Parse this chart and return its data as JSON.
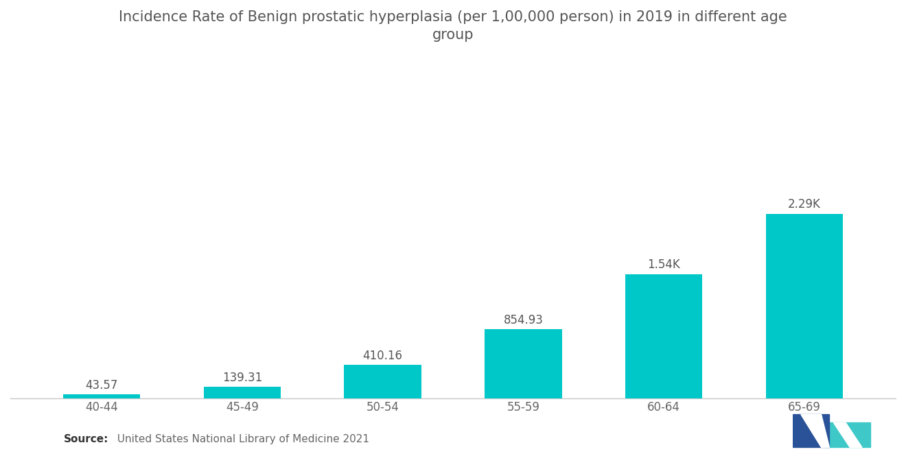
{
  "title_line1": "Incidence Rate of Benign prostatic hyperplasia (per 1,00,000 person) in 2019 in different age",
  "title_line2": "group",
  "categories": [
    "40-44",
    "45-49",
    "50-54",
    "55-59",
    "60-64",
    "65-69"
  ],
  "values": [
    43.57,
    139.31,
    410.16,
    854.93,
    1540,
    2290
  ],
  "labels": [
    "43.57",
    "139.31",
    "410.16",
    "854.93",
    "1.54K",
    "2.29K"
  ],
  "bar_color": "#00C8C8",
  "background_color": "#FFFFFF",
  "title_color": "#555555",
  "label_color": "#555555",
  "tick_color": "#666666",
  "source_bold": "Source:",
  "source_text": "  United States National Library of Medicine 2021",
  "title_fontsize": 15,
  "label_fontsize": 12,
  "tick_fontsize": 12,
  "source_fontsize": 11,
  "ylim": [
    0,
    4200
  ],
  "bar_width": 0.55,
  "logo_colors": {
    "dark_blue": "#2A5298",
    "teal": "#3EC8C8"
  }
}
